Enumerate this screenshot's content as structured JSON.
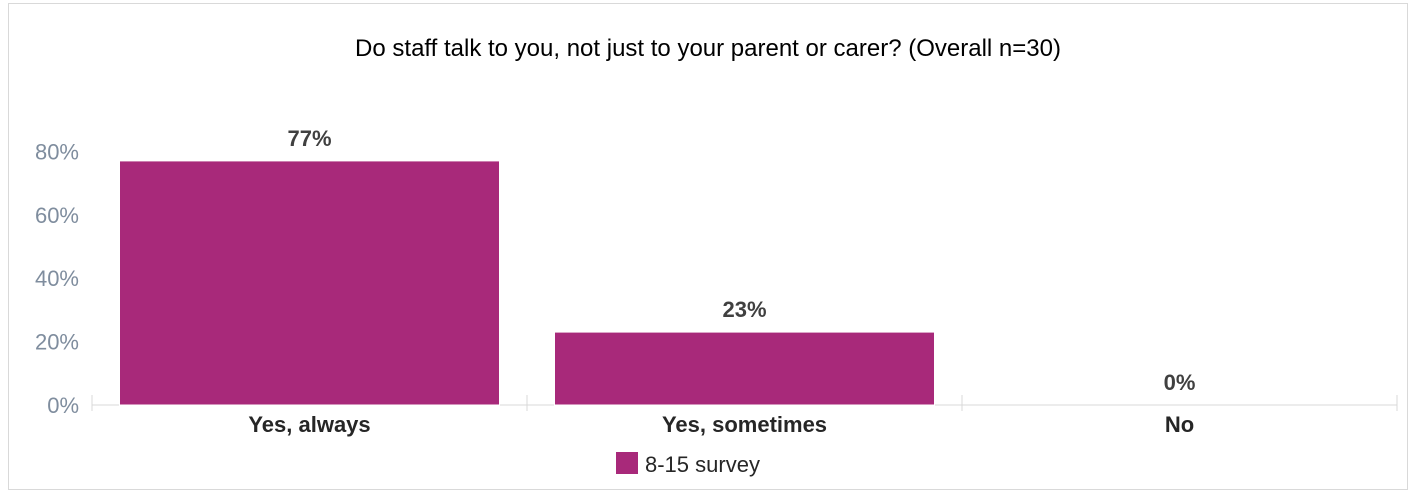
{
  "heading": "",
  "chart_data": {
    "type": "bar",
    "title": "Do staff talk to you, not just to your parent or carer? (Overall n=30)",
    "categories": [
      "Yes, always",
      "Yes, sometimes",
      "No"
    ],
    "series": [
      {
        "name": "8-15 survey",
        "values": [
          77,
          23,
          0
        ],
        "color": "#a8297a"
      }
    ],
    "data_labels": [
      "77%",
      "23%",
      "0%"
    ],
    "ytick_labels": [
      "0%",
      "20%",
      "40%",
      "60%",
      "80%"
    ],
    "yticks": [
      0,
      20,
      40,
      60,
      80
    ],
    "ylim": [
      0,
      100
    ],
    "grid": false,
    "legend_position": "bottom"
  }
}
